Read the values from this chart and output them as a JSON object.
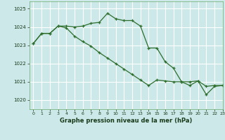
{
  "title": "Graphe pression niveau de la mer (hPa)",
  "background_color": "#cce8e8",
  "grid_color": "#ffffff",
  "line_color": "#2d6e2d",
  "xlim": [
    -0.5,
    23
  ],
  "ylim": [
    1019.5,
    1025.4
  ],
  "yticks": [
    1020,
    1021,
    1022,
    1023,
    1024,
    1025
  ],
  "xticks": [
    0,
    1,
    2,
    3,
    4,
    5,
    6,
    7,
    8,
    9,
    10,
    11,
    12,
    13,
    14,
    15,
    16,
    17,
    18,
    19,
    20,
    21,
    22,
    23
  ],
  "series1_x": [
    0,
    1,
    2,
    3,
    4,
    5,
    6,
    7,
    8,
    9,
    10,
    11,
    12,
    13,
    14,
    15,
    16,
    17,
    18,
    19,
    20,
    21,
    22,
    23
  ],
  "series1_y": [
    1023.1,
    1023.65,
    1023.65,
    1024.05,
    1024.05,
    1024.0,
    1024.05,
    1024.2,
    1024.25,
    1024.75,
    1024.45,
    1024.35,
    1024.35,
    1024.05,
    1022.85,
    1022.85,
    1022.1,
    1021.75,
    1021.0,
    1020.8,
    1021.05,
    1020.3,
    1020.75,
    1020.8
  ],
  "series2_x": [
    0,
    1,
    2,
    3,
    4,
    5,
    6,
    7,
    8,
    9,
    10,
    11,
    12,
    13,
    14,
    15,
    16,
    17,
    18,
    19,
    20,
    21,
    22,
    23
  ],
  "series2_y": [
    1023.1,
    1023.65,
    1023.65,
    1024.05,
    1023.95,
    1023.5,
    1023.2,
    1022.95,
    1022.6,
    1022.3,
    1022.0,
    1021.7,
    1021.4,
    1021.1,
    1020.8,
    1021.1,
    1021.05,
    1021.0,
    1021.0,
    1021.0,
    1021.05,
    1020.75,
    1020.8,
    1020.8
  ]
}
